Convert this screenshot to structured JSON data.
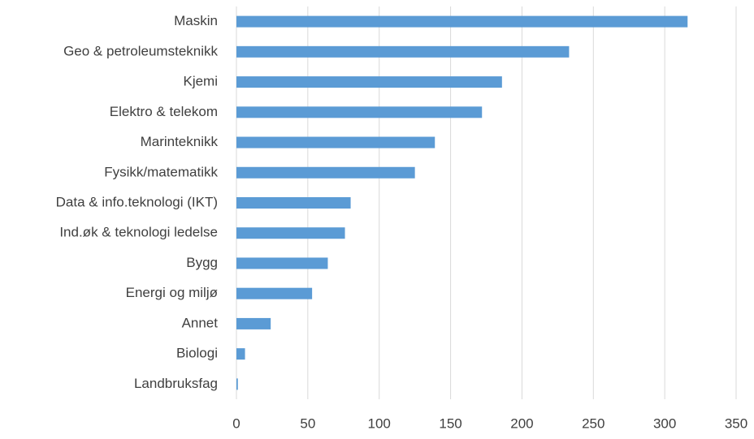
{
  "chart_data": {
    "type": "hbar",
    "categories": [
      "Maskin",
      "Geo & petroleumsteknikk",
      "Kjemi",
      "Elektro & telekom",
      "Marinteknikk",
      "Fysikk/matematikk",
      "Data & info.teknologi (IKT)",
      "Ind.øk & teknologi ledelse",
      "Bygg",
      "Energi og miljø",
      "Annet",
      "Biologi",
      "Landbruksfag"
    ],
    "values": [
      316,
      233,
      186,
      172,
      139,
      125,
      80,
      76,
      64,
      53,
      24,
      6,
      1
    ],
    "color": "#5b9bd5",
    "xlim": [
      0,
      350
    ],
    "xticks": [
      0,
      50,
      100,
      150,
      200,
      250,
      300,
      350
    ],
    "grid": true
  }
}
